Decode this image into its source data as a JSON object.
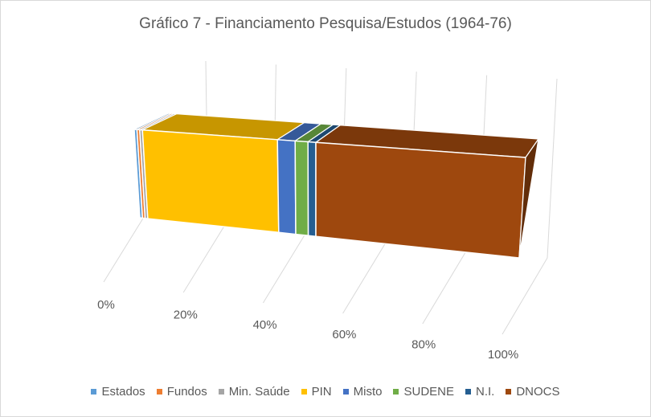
{
  "chart_data": {
    "type": "bar",
    "stacked": "100%",
    "orientation": "horizontal",
    "view": "3d-perspective",
    "title": "Gráfico 7 - Financiamento Pesquisa/Estudos (1964-76)",
    "xlim": [
      0,
      100
    ],
    "x_ticks": [
      "0%",
      "20%",
      "40%",
      "60%",
      "80%",
      "100%"
    ],
    "grid": true,
    "legend_position": "bottom",
    "series": [
      {
        "name": "Estados",
        "value": 0.7,
        "color": "#5b9bd5"
      },
      {
        "name": "Fundos",
        "value": 0.7,
        "color": "#ed7d31"
      },
      {
        "name": "Min. Saúde",
        "value": 0.7,
        "color": "#a5a5a5"
      },
      {
        "name": "PIN",
        "value": 34.5,
        "color": "#ffc000"
      },
      {
        "name": "Misto",
        "value": 4.5,
        "color": "#4472c4"
      },
      {
        "name": "SUDENE",
        "value": 3.3,
        "color": "#70ad47"
      },
      {
        "name": "N.I.",
        "value": 2.0,
        "color": "#255e91"
      },
      {
        "name": "DNOCS",
        "value": 53.6,
        "color": "#9e480e"
      }
    ]
  }
}
